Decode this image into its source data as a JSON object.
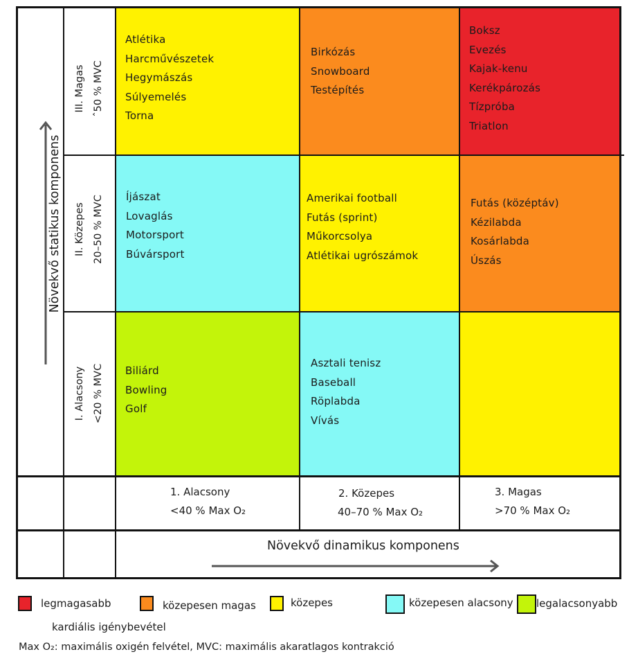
{
  "colors": {
    "red": "#e8232b",
    "orange": "#fb8b1e",
    "yellow": "#fff200",
    "cyan": "#85f9f6",
    "green": "#c3f40a"
  },
  "axes": {
    "static_title": "Növekvő statikus komponens",
    "dynamic_title": "Növekvő dinamikus komponens"
  },
  "rows": [
    {
      "level": "III. Magas",
      "range": "ˆ50 % MVC"
    },
    {
      "level": "II. Közepes",
      "range": "20–50 % MVC"
    },
    {
      "level": "I. Alacsony",
      "range": "<20 % MVC"
    }
  ],
  "columns": [
    {
      "level": "1. Alacsony",
      "range": "<40 % Max O₂"
    },
    {
      "level": "2. Közepes",
      "range": "40–70 % Max O₂"
    },
    {
      "level": "3. Magas",
      "range": ">70 % Max O₂"
    }
  ],
  "cells": {
    "high_low": {
      "sports": [
        "Atlétika",
        "Harcművészetek",
        "Hegymászás",
        "Súlyemelés",
        "Torna"
      ]
    },
    "high_mid": {
      "sports": [
        "Birkózás",
        "Snowboard",
        "Testépítés"
      ]
    },
    "high_high": {
      "sports": [
        "Boksz",
        "Evezés",
        "Kajak-kenu",
        "Kerékpározás",
        "Tízpróba",
        "Triatlon"
      ]
    },
    "mid_low": {
      "sports": [
        "Íjászat",
        "Lovaglás",
        "Motorsport",
        "Búvársport"
      ]
    },
    "mid_mid": {
      "sports": [
        "Amerikai football",
        "Futás (sprint)",
        "Műkorcsolya",
        "Atlétikai ugrószámok"
      ]
    },
    "mid_high": {
      "sports": [
        "Futás (középtáv)",
        "Kézilabda",
        "Kosárlabda",
        "Úszás"
      ]
    },
    "low_low": {
      "sports": [
        "Biliárd",
        "Bowling",
        "Golf"
      ]
    },
    "low_mid": {
      "sports": [
        "Asztali tenisz",
        "Baseball",
        "Röplabda",
        "Vívás"
      ]
    },
    "low_high": {
      "sports": []
    }
  },
  "legend": {
    "items": [
      {
        "label": "legmagasabb"
      },
      {
        "label": "közepesen magas"
      },
      {
        "label": "közepes"
      },
      {
        "label": "közepesen alacsony"
      },
      {
        "label": "legalacsonyabb"
      }
    ],
    "subtitle": "kardiális igénybevétel",
    "note": "Max O₂: maximális oxigén felvétel, MVC: maximális akaratlagos kontrakció"
  }
}
